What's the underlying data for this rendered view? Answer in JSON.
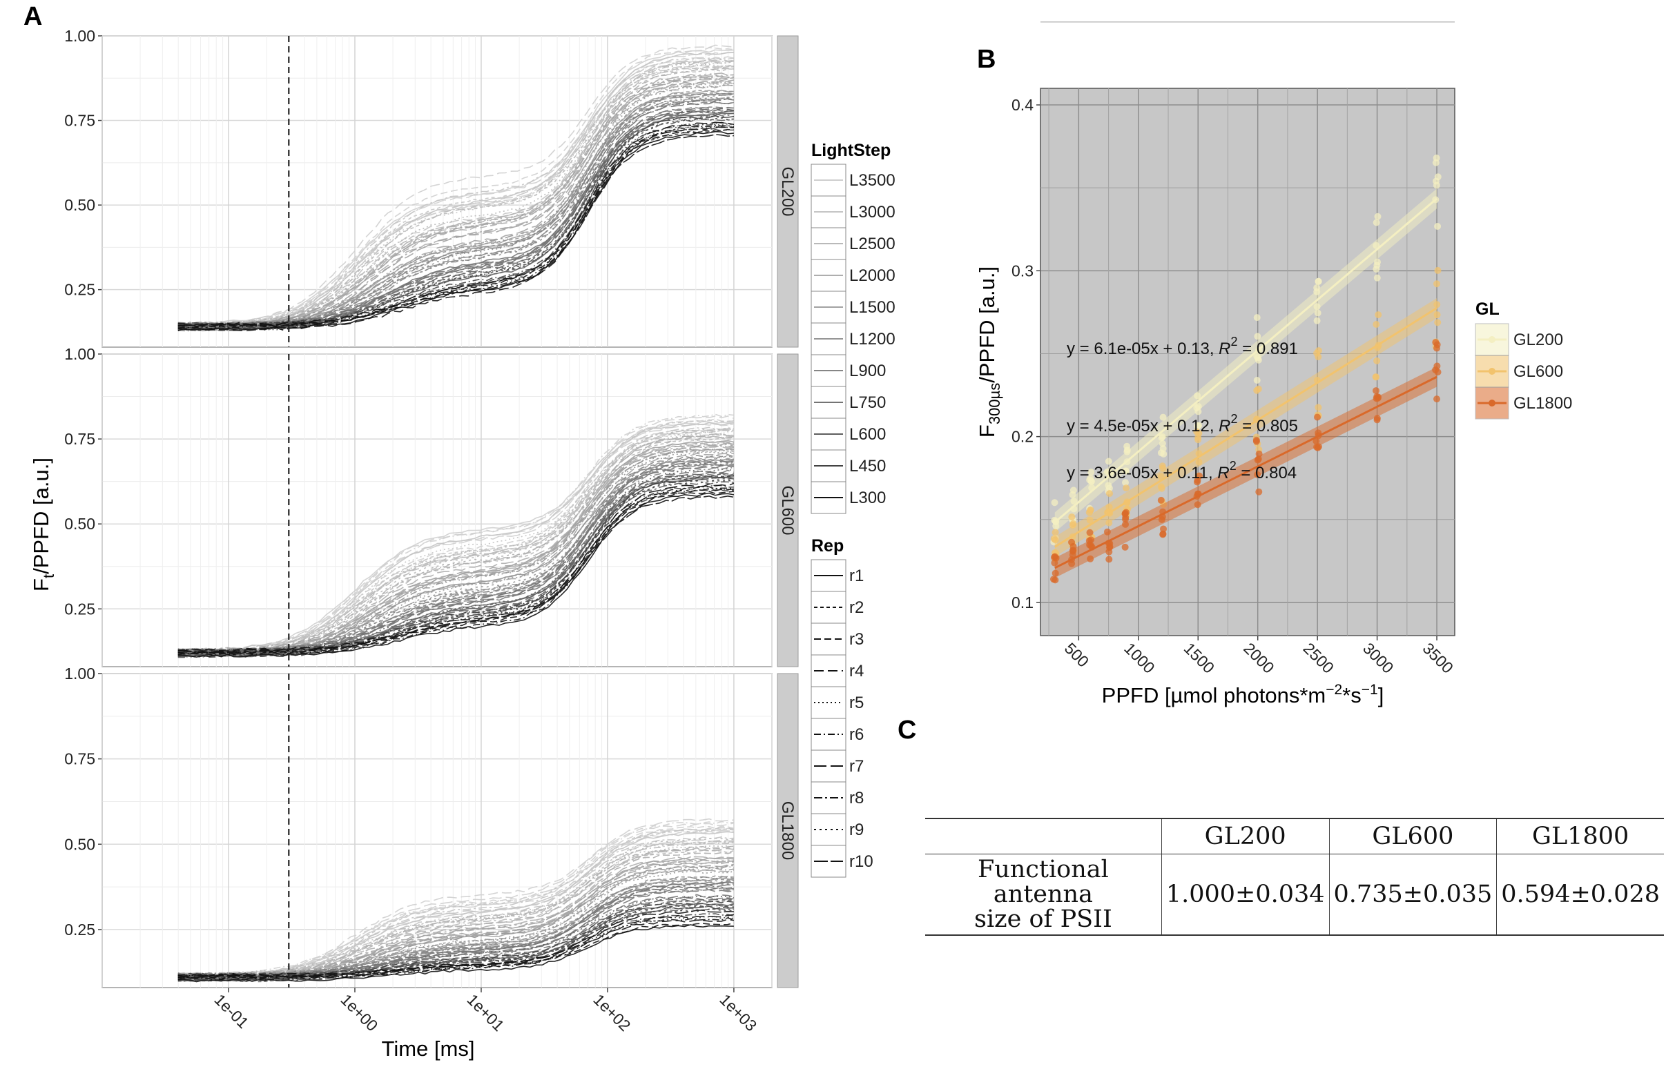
{
  "panel_labels": {
    "a": "A",
    "b": "B",
    "c": "C"
  },
  "chart_data": [
    {
      "type": "line",
      "title": "",
      "xlabel": "Time [ms]",
      "ylabel": "Ft/PPFD [a.u.]",
      "ylabel_main": "F",
      "ylabel_sub": "t",
      "ylabel_rest": "/PPFD [a.u.]",
      "x_scale": "log10",
      "xlim": [
        0.01,
        2000
      ],
      "x_ticks": [
        0.1,
        1,
        10,
        100,
        1000
      ],
      "x_tick_labels": [
        "1e-01",
        "1e+00",
        "1e+01",
        "1e+02",
        "1e+03"
      ],
      "ylim": [
        0.08,
        1.0
      ],
      "y_ticks": [
        0.25,
        0.5,
        0.75,
        1.0
      ],
      "y_tick_labels": [
        "0.25",
        "0.50",
        "0.75",
        "1.00"
      ],
      "vline_x": 0.3,
      "facets": [
        {
          "label": "GL200",
          "start": 0.14,
          "end_low": 0.72,
          "end_high": 0.95
        },
        {
          "label": "GL600",
          "start": 0.12,
          "end_low": 0.6,
          "end_high": 0.8
        },
        {
          "label": "GL1800",
          "start": 0.11,
          "end_low": 0.28,
          "end_high": 0.55
        }
      ],
      "legend_lightstep": {
        "title": "LightStep",
        "entries": [
          "L3500",
          "L3000",
          "L2500",
          "L2000",
          "L1500",
          "L1200",
          "L900",
          "L750",
          "L600",
          "L450",
          "L300"
        ],
        "colors": [
          "#cfcfcf",
          "#c4c4c4",
          "#b9b9b9",
          "#aeaeae",
          "#a2a2a2",
          "#959595",
          "#868686",
          "#747474",
          "#5e5e5e",
          "#434343",
          "#111111"
        ]
      },
      "legend_rep": {
        "title": "Rep",
        "entries": [
          "r1",
          "r2",
          "r3",
          "r4",
          "r5",
          "r6",
          "r7",
          "r8",
          "r9",
          "r10"
        ]
      }
    },
    {
      "type": "scatter",
      "title": "",
      "xlabel": "PPFD [µmol photons*m−2*s−1]",
      "xlabel_main": "PPFD [µmol photons*m",
      "xlabel_sup1": "−2",
      "xlabel_mid": "*s",
      "xlabel_sup2": "−1",
      "xlabel_end": "]",
      "ylabel": "F300µs/PPFD [a.u.]",
      "ylabel_main": "F",
      "ylabel_sub": "300µs",
      "ylabel_rest": "/PPFD [a.u.]",
      "xlim": [
        180,
        3650
      ],
      "ylim": [
        0.08,
        0.41
      ],
      "x_ticks": [
        500,
        1000,
        1500,
        2000,
        2500,
        3000,
        3500
      ],
      "x_tick_labels": [
        "500",
        "1000",
        "1500",
        "2000",
        "2500",
        "3000",
        "3500"
      ],
      "y_ticks": [
        0.1,
        0.2,
        0.3,
        0.4
      ],
      "y_tick_labels": [
        "0.1",
        "0.2",
        "0.3",
        "0.4"
      ],
      "x_levels": [
        300,
        450,
        600,
        750,
        900,
        1200,
        1500,
        2000,
        2500,
        3000,
        3500
      ],
      "legend_title": "GL",
      "series": [
        {
          "name": "GL200",
          "color": "#f4efc2",
          "slope": 6.1e-05,
          "intercept": 0.13,
          "spread": 0.018,
          "equation": "y = 6.1e-05x + 0.13,",
          "r2_label": "R",
          "r2_value": "2",
          "r2_text": " = 0.891"
        },
        {
          "name": "GL600",
          "color": "#f2c36d",
          "slope": 4.5e-05,
          "intercept": 0.12,
          "spread": 0.016,
          "equation": "y = 4.5e-05x + 0.12,",
          "r2_label": "R",
          "r2_value": "2",
          "r2_text": " = 0.805"
        },
        {
          "name": "GL1800",
          "color": "#d9692a",
          "slope": 3.6e-05,
          "intercept": 0.11,
          "spread": 0.014,
          "equation": "y = 3.6e-05x + 0.11,",
          "r2_label": "R",
          "r2_value": "2",
          "r2_text": " = 0.804"
        }
      ]
    },
    {
      "type": "table",
      "columns": [
        "",
        "GL200",
        "GL600",
        "GL1800"
      ],
      "rows": [
        {
          "label_line1": "Functional antenna",
          "label_line2": "size of PSII",
          "values": [
            "1.000±0.034",
            "0.735±0.035",
            "0.594±0.028"
          ]
        }
      ]
    }
  ]
}
